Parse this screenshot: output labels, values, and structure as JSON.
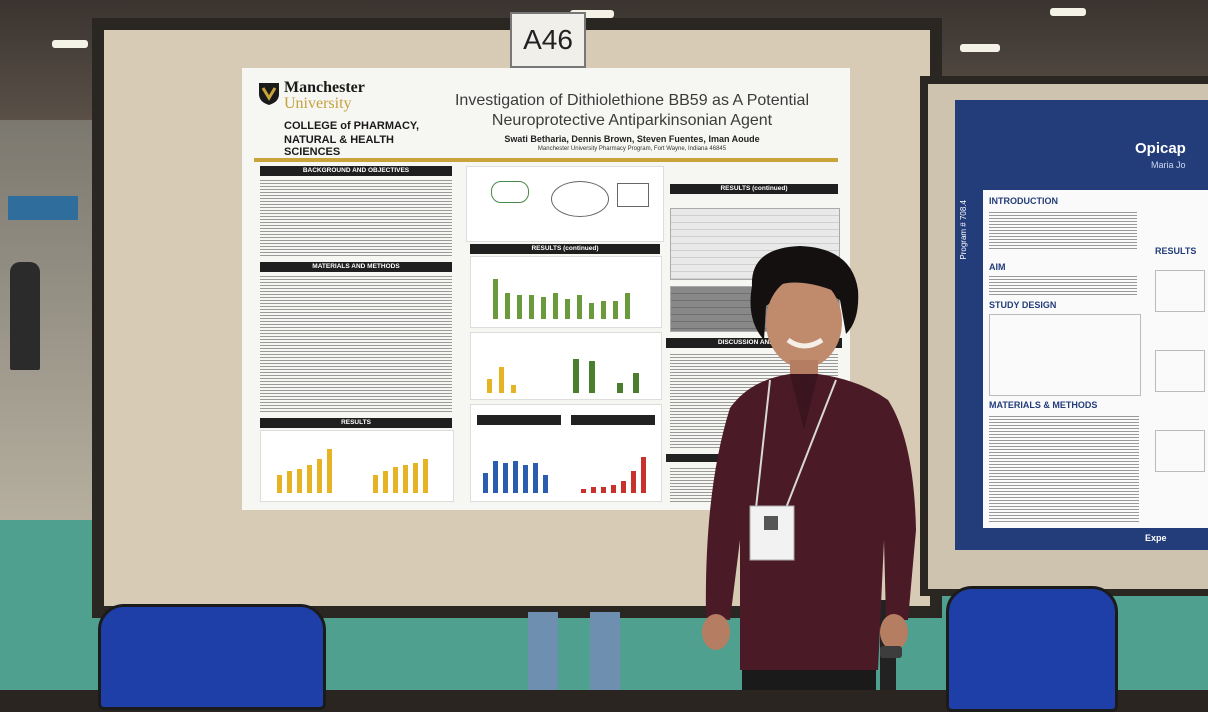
{
  "booth_sign": "A46",
  "poster": {
    "university_line1": "Manchester",
    "university_line2": "University",
    "college_line1": "COLLEGE of PHARMACY,",
    "college_line2": "NATURAL & HEALTH SCIENCES",
    "title_line1": "Investigation of Dithiolethione BB59 as A Potential",
    "title_line2": "Neuroprotective Antiparkinsonian Agent",
    "authors": "Swati Betharia, Dennis Brown, Steven Fuentes, Iman Aoude",
    "affiliation": "Manchester University Pharmacy Program, Fort Wayne, Indiana 46845",
    "sections": {
      "background": "BACKGROUND AND OBJECTIVES",
      "materials": "MATERIALS AND METHODS",
      "results_left": "RESULTS",
      "results_mid": "RESULTS (continued)",
      "results_right": "RESULTS (continued)",
      "discussion": "DISCUSSION AND CON"
    }
  },
  "poster2": {
    "title": "Opicap",
    "subtitle": "Maria Jo",
    "side_label": "Program # 708.4",
    "introduction": "INTRODUCTION",
    "aim": "AIM",
    "study_design": "STUDY DESIGN",
    "materials": "MATERIALS & METHODS",
    "results": "RESULTS",
    "footer": "Expe"
  },
  "colors": {
    "poster_gold": "#c8a43a",
    "poster2_navy": "#233c7a",
    "floor": "#4fa08e",
    "board": "#d8cbb5",
    "shirt": "#4a1a26",
    "chair": "#1f3fa8"
  }
}
